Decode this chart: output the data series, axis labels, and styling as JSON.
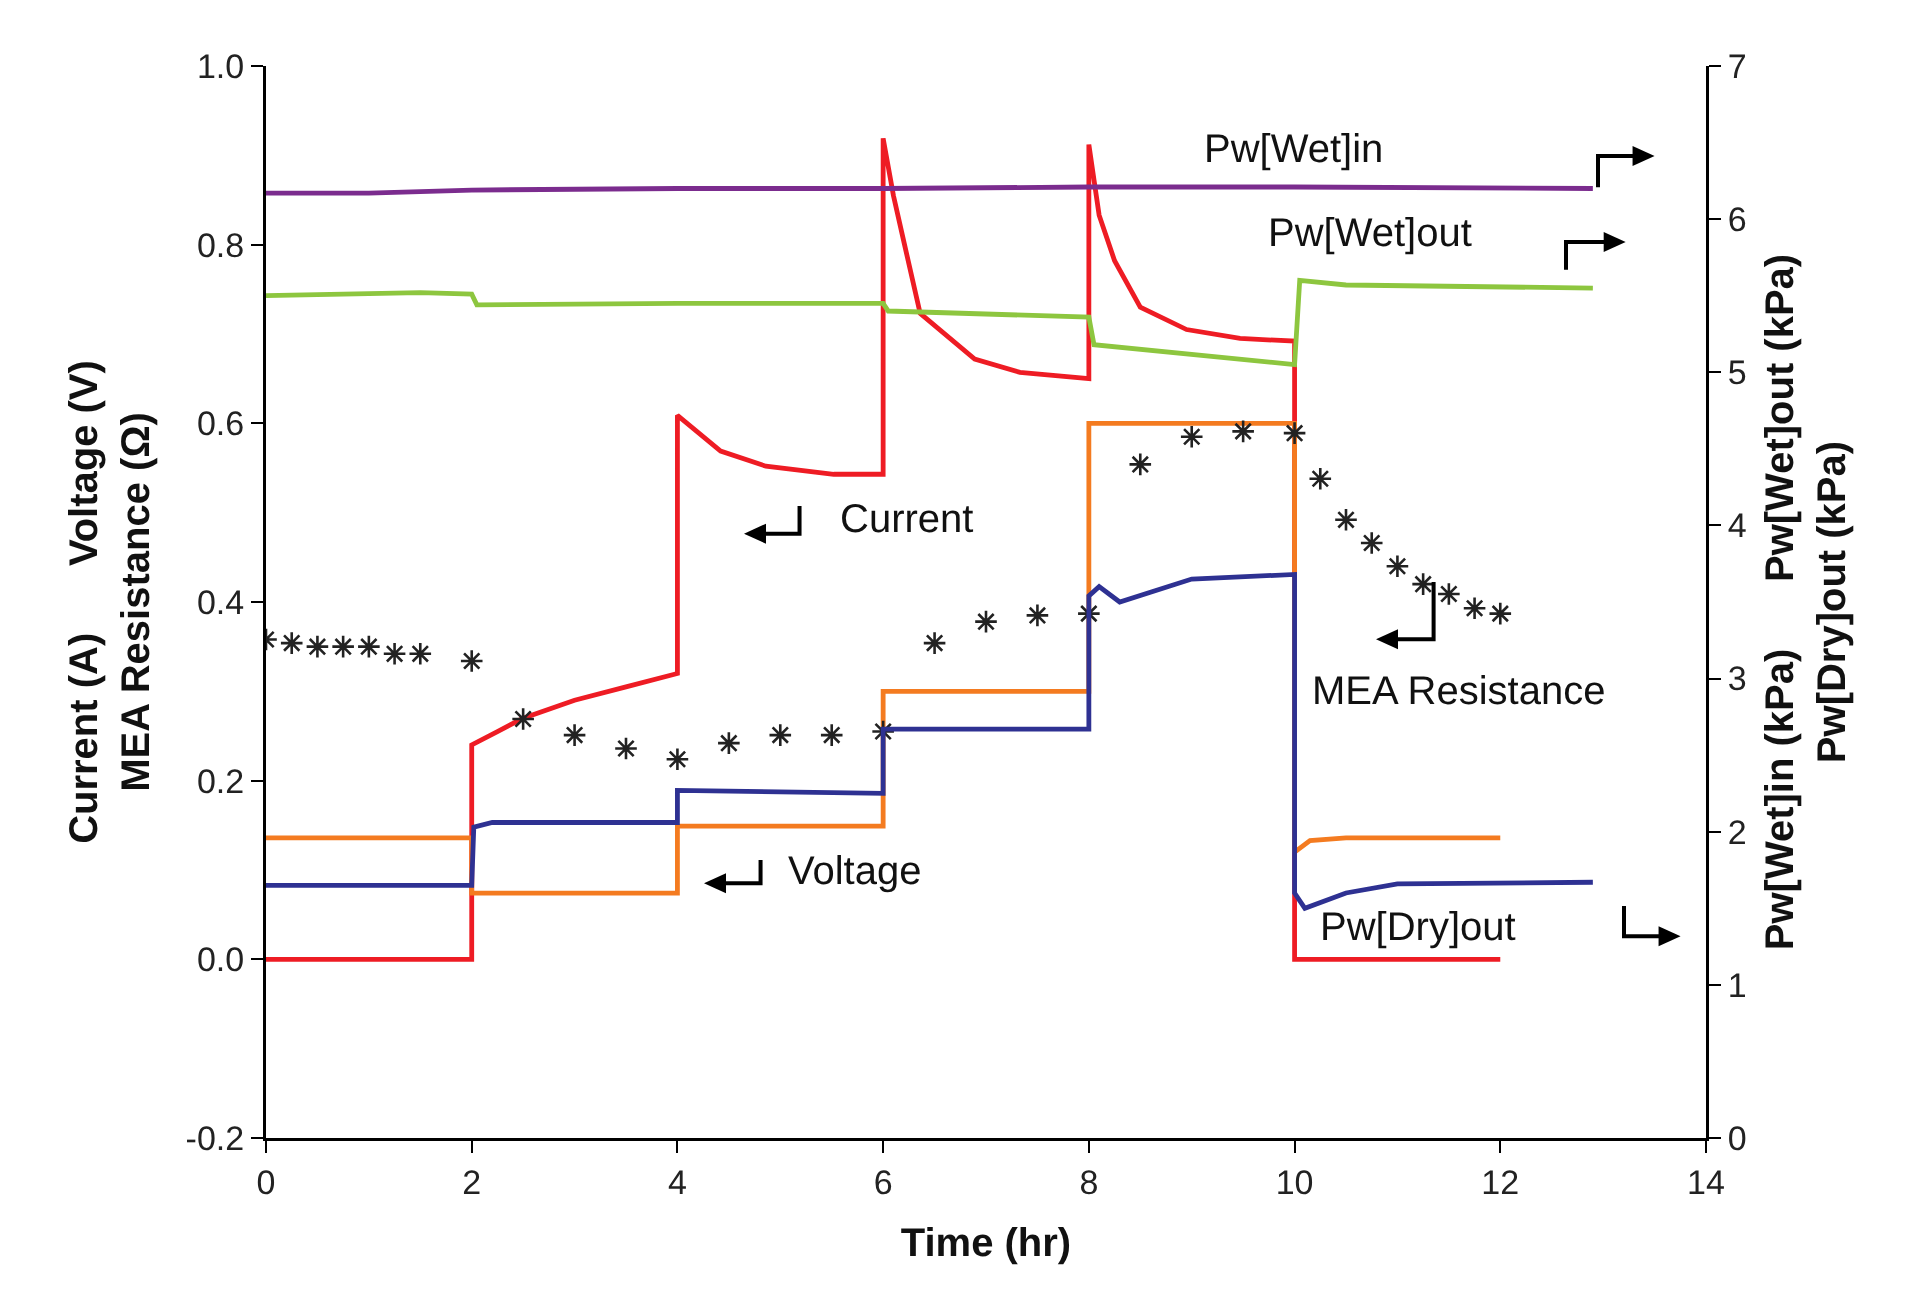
{
  "chart_data": {
    "type": "line",
    "xlabel": "Time (hr)",
    "ylabel": "Current (A)   Voltage (V)\nMEA Resistance (Ω)",
    "y2label": "Pw[Wet]in (kPa)   Pw[Wet]out (kPa)\nPw[Dry]out (kPa)",
    "xlim": [
      0,
      14
    ],
    "xticks": [
      0,
      2,
      4,
      6,
      8,
      10,
      12,
      14
    ],
    "ylim": [
      -0.2,
      1
    ],
    "yticks": [
      -0.2,
      {
        "value": 0,
        "label": "0.0"
      },
      0.2,
      0.4,
      0.6,
      0.8,
      {
        "value": 1,
        "label": "1.0"
      }
    ],
    "y2lim": [
      0,
      7
    ],
    "y2ticks": [
      0,
      1,
      2,
      3,
      4,
      5,
      6,
      7
    ],
    "grid": false,
    "legend": false,
    "marker": "none",
    "line_style": "solid",
    "series": [
      {
        "name": "Current",
        "color": "#ee1c24",
        "x": [
          0,
          2,
          2,
          2.25,
          2.5,
          3,
          3.5,
          4,
          4,
          4.42,
          4.86,
          5.52,
          6,
          6,
          6.1,
          6.2,
          6.36,
          6.89,
          7.33,
          8,
          8,
          8.1,
          8.25,
          8.5,
          8.95,
          9.47,
          10,
          10,
          12
        ],
        "values": [
          0,
          0,
          0.24,
          0.255,
          0.27,
          0.29,
          0.305,
          0.32,
          0.609,
          0.569,
          0.552,
          0.543,
          0.543,
          0.919,
          0.855,
          0.804,
          0.723,
          0.672,
          0.657,
          0.65,
          0.912,
          0.833,
          0.782,
          0.73,
          0.705,
          0.695,
          0.692,
          0,
          0
        ]
      },
      {
        "name": "Voltage",
        "color": "#f47b20",
        "x": [
          0,
          2,
          2,
          4,
          4,
          6,
          6,
          8,
          8,
          10,
          10,
          10.15,
          10.5,
          12
        ],
        "values": [
          0.136,
          0.136,
          0.074,
          0.074,
          0.149,
          0.149,
          0.3,
          0.3,
          0.6,
          0.6,
          0.12,
          0.133,
          0.136,
          0.136
        ]
      },
      {
        "name": "MEA Resistance",
        "type": "scatter",
        "marker": "cross",
        "color": "#222222",
        "x": [
          0,
          0.25,
          0.5,
          0.75,
          1,
          1.25,
          1.5,
          2,
          2.5,
          3,
          3.5,
          4,
          4.5,
          5,
          5.5,
          6,
          6.5,
          7,
          7.5,
          8,
          8.5,
          9,
          9.5,
          10,
          10.25,
          10.5,
          10.75,
          11,
          11.25,
          11.5,
          11.75,
          12
        ],
        "values": [
          0.358,
          0.354,
          0.35,
          0.35,
          0.35,
          0.342,
          0.342,
          0.334,
          0.269,
          0.251,
          0.236,
          0.224,
          0.242,
          0.251,
          0.251,
          0.255,
          0.354,
          0.378,
          0.385,
          0.387,
          0.554,
          0.585,
          0.591,
          0.589,
          0.538,
          0.492,
          0.466,
          0.44,
          0.42,
          0.409,
          0.393,
          0.387
        ]
      },
      {
        "name": "Pw[Dry]out",
        "axis": "y2",
        "color": "#2e3192",
        "x": [
          0,
          2,
          2.02,
          2.2,
          4,
          4,
          6,
          6,
          8,
          8,
          8.1,
          8.3,
          9,
          10,
          10,
          10.1,
          10.5,
          11,
          12.9
        ],
        "values": [
          1.65,
          1.65,
          2.03,
          2.06,
          2.06,
          2.27,
          2.25,
          2.67,
          2.67,
          3.54,
          3.6,
          3.5,
          3.65,
          3.68,
          1.6,
          1.5,
          1.6,
          1.66,
          1.67
        ]
      },
      {
        "name": "Pw[Wet]in",
        "axis": "y2",
        "color": "#7b2c8e",
        "x": [
          0,
          1,
          2,
          4,
          6,
          8,
          10,
          12.9
        ],
        "values": [
          6.17,
          6.17,
          6.19,
          6.2,
          6.2,
          6.21,
          6.21,
          6.2
        ]
      },
      {
        "name": "Pw[Wet]out",
        "axis": "y2",
        "color": "#8dc63f",
        "x": [
          0,
          1.5,
          2,
          2.05,
          4,
          6,
          6.05,
          8,
          8.05,
          10,
          10.05,
          10.5,
          12.9
        ],
        "values": [
          5.5,
          5.52,
          5.51,
          5.44,
          5.45,
          5.45,
          5.4,
          5.36,
          5.18,
          5.05,
          5.6,
          5.57,
          5.55
        ]
      }
    ]
  }
}
